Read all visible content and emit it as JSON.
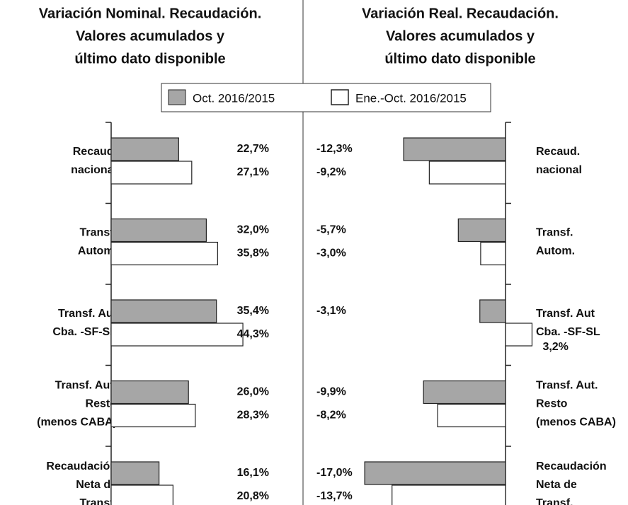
{
  "chart_data": [
    {
      "type": "bar",
      "orientation": "horizontal",
      "title": [
        "Variación Nominal. Recaudación.",
        "Valores acumulados y",
        "último dato disponible"
      ],
      "categories": [
        [
          "Recaud.",
          "nacional"
        ],
        [
          "Transf.",
          "Autom."
        ],
        [
          "Transf. Aut",
          "Cba. -SF-SL"
        ],
        [
          "Transf. Aut.",
          "Resto",
          "(menos CABA)"
        ],
        [
          "Recaudación",
          "Neta de",
          "Transf."
        ]
      ],
      "xlim": [
        0,
        50
      ],
      "series": [
        {
          "name": "Oct. 2016/2015",
          "color": "#a6a6a6",
          "values": [
            22.7,
            32.0,
            35.4,
            26.0,
            16.1
          ],
          "value_labels": [
            "22,7%",
            "32,0%",
            "35,4%",
            "26,0%",
            "16,1%"
          ]
        },
        {
          "name": "Ene.-Oct. 2016/2015",
          "color": "#ffffff",
          "values": [
            27.1,
            35.8,
            44.3,
            28.3,
            20.8
          ],
          "value_labels": [
            "27,1%",
            "35,8%",
            "44,3%",
            "28,3%",
            "20,8%"
          ]
        }
      ]
    },
    {
      "type": "bar",
      "orientation": "horizontal",
      "title": [
        "Variación Real. Recaudación.",
        "Valores acumulados y",
        "último dato disponible"
      ],
      "categories": [
        [
          "Recaud.",
          "nacional"
        ],
        [
          "Transf.",
          "Autom."
        ],
        [
          "Transf. Aut",
          "Cba. -SF-SL"
        ],
        [
          "Transf. Aut.",
          "Resto",
          "(menos CABA)"
        ],
        [
          "Recaudación",
          "Neta de",
          "Transf."
        ]
      ],
      "xlim": [
        -20,
        5
      ],
      "series": [
        {
          "color": "#a6a6a6",
          "values": [
            -12.3,
            -5.7,
            -3.1,
            -9.9,
            -17.0
          ],
          "value_labels": [
            "-12,3%",
            "-5,7%",
            "-3,1%",
            "-9,9%",
            "-17,0%"
          ]
        },
        {
          "color": "#ffffff",
          "values": [
            -9.2,
            -3.0,
            3.2,
            -8.2,
            -13.7
          ],
          "value_labels": [
            "-9,2%",
            "-3,0%",
            "3,2%",
            "-8,2%",
            "-13,7%"
          ]
        }
      ]
    }
  ]
}
